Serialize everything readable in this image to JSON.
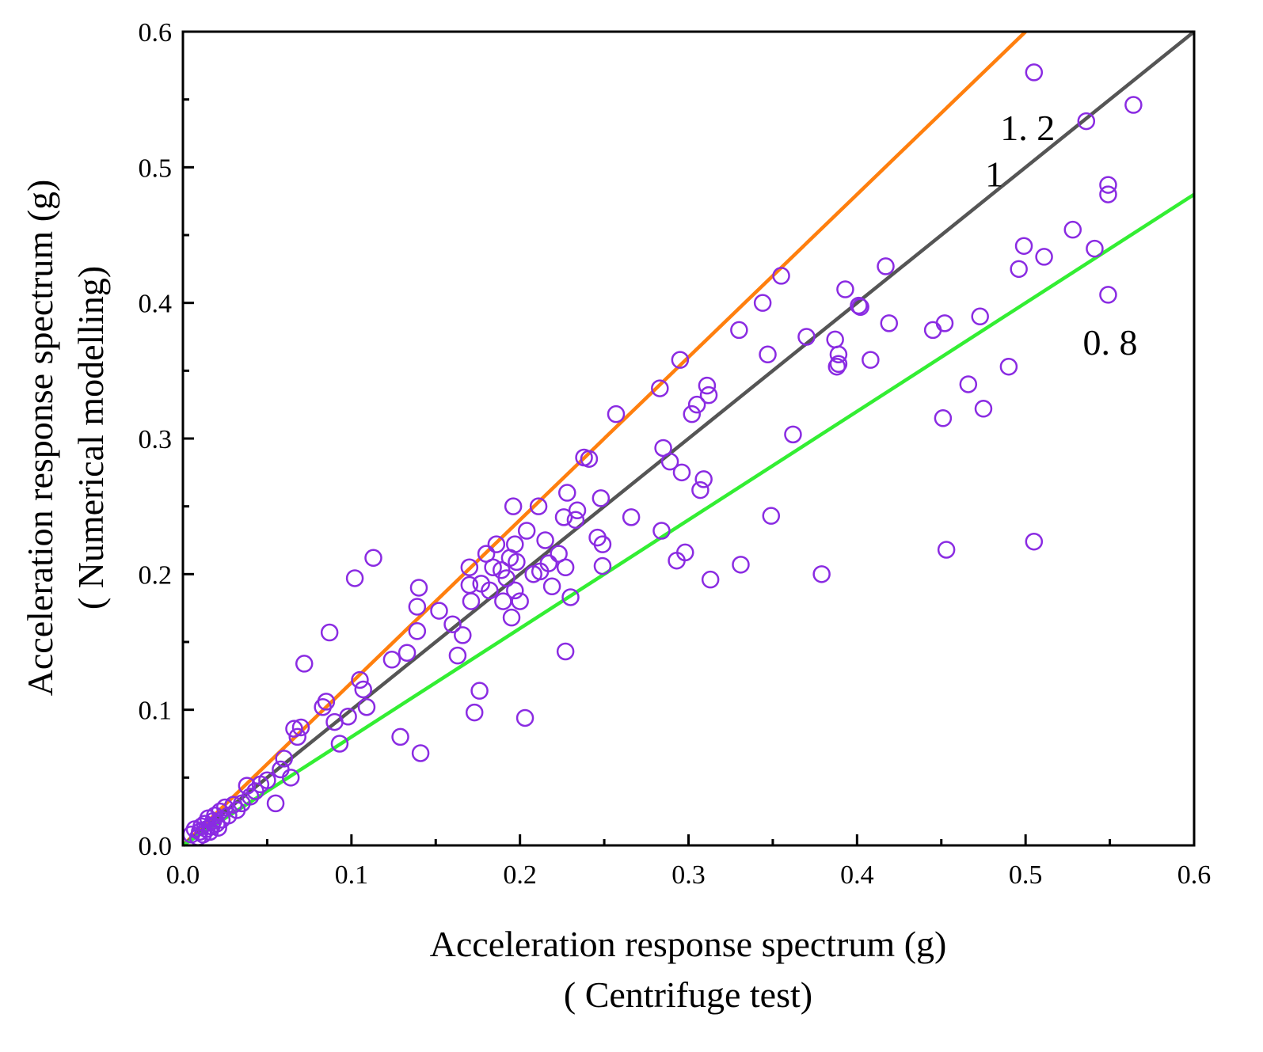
{
  "chart_data": {
    "type": "scatter",
    "x_title_line1": "Acceleration response spectrum (g)",
    "x_title_line2": "( Centrifuge test)",
    "y_title_line1": "Acceleration response spectrum (g)",
    "y_title_line2": "( Numerical modelling)",
    "xlim": [
      0,
      0.6
    ],
    "ylim": [
      0,
      0.6
    ],
    "x_ticks": [
      "0.0",
      "0.1",
      "0.2",
      "0.3",
      "0.4",
      "0.5",
      "0.6"
    ],
    "y_ticks": [
      "0.0",
      "0.1",
      "0.2",
      "0.3",
      "0.4",
      "0.5",
      "0.6"
    ],
    "reference_lines": [
      {
        "label": "1. 2",
        "slope": 1.2,
        "color": "#ff7f0e"
      },
      {
        "label": "1",
        "slope": 1.0,
        "color": "#555555"
      },
      {
        "label": "0. 8",
        "slope": 0.8,
        "color": "#33ee33"
      }
    ],
    "marker_color": "#8a2be2",
    "series": [
      {
        "name": "Acceleration response spectrum",
        "points": [
          [
            0.005,
            0.008
          ],
          [
            0.007,
            0.012
          ],
          [
            0.009,
            0.006
          ],
          [
            0.01,
            0.01
          ],
          [
            0.011,
            0.014
          ],
          [
            0.012,
            0.008
          ],
          [
            0.013,
            0.016
          ],
          [
            0.014,
            0.012
          ],
          [
            0.015,
            0.02
          ],
          [
            0.016,
            0.01
          ],
          [
            0.017,
            0.014
          ],
          [
            0.018,
            0.018
          ],
          [
            0.019,
            0.022
          ],
          [
            0.02,
            0.016
          ],
          [
            0.021,
            0.013
          ],
          [
            0.022,
            0.025
          ],
          [
            0.023,
            0.019
          ],
          [
            0.025,
            0.028
          ],
          [
            0.027,
            0.022
          ],
          [
            0.03,
            0.03
          ],
          [
            0.032,
            0.026
          ],
          [
            0.035,
            0.031
          ],
          [
            0.038,
            0.044
          ],
          [
            0.04,
            0.036
          ],
          [
            0.043,
            0.04
          ],
          [
            0.046,
            0.045
          ],
          [
            0.05,
            0.048
          ],
          [
            0.055,
            0.031
          ],
          [
            0.058,
            0.056
          ],
          [
            0.06,
            0.064
          ],
          [
            0.064,
            0.05
          ],
          [
            0.066,
            0.086
          ],
          [
            0.068,
            0.08
          ],
          [
            0.07,
            0.087
          ],
          [
            0.072,
            0.134
          ],
          [
            0.083,
            0.102
          ],
          [
            0.085,
            0.106
          ],
          [
            0.087,
            0.157
          ],
          [
            0.09,
            0.091
          ],
          [
            0.093,
            0.075
          ],
          [
            0.098,
            0.095
          ],
          [
            0.102,
            0.197
          ],
          [
            0.105,
            0.122
          ],
          [
            0.107,
            0.115
          ],
          [
            0.109,
            0.102
          ],
          [
            0.113,
            0.212
          ],
          [
            0.124,
            0.137
          ],
          [
            0.129,
            0.08
          ],
          [
            0.133,
            0.142
          ],
          [
            0.139,
            0.176
          ],
          [
            0.139,
            0.158
          ],
          [
            0.14,
            0.19
          ],
          [
            0.141,
            0.068
          ],
          [
            0.152,
            0.173
          ],
          [
            0.16,
            0.163
          ],
          [
            0.163,
            0.14
          ],
          [
            0.166,
            0.155
          ],
          [
            0.17,
            0.205
          ],
          [
            0.17,
            0.192
          ],
          [
            0.171,
            0.18
          ],
          [
            0.173,
            0.098
          ],
          [
            0.176,
            0.114
          ],
          [
            0.177,
            0.193
          ],
          [
            0.18,
            0.215
          ],
          [
            0.182,
            0.188
          ],
          [
            0.184,
            0.205
          ],
          [
            0.186,
            0.222
          ],
          [
            0.189,
            0.203
          ],
          [
            0.19,
            0.18
          ],
          [
            0.192,
            0.197
          ],
          [
            0.194,
            0.212
          ],
          [
            0.195,
            0.168
          ],
          [
            0.196,
            0.25
          ],
          [
            0.197,
            0.222
          ],
          [
            0.197,
            0.188
          ],
          [
            0.198,
            0.209
          ],
          [
            0.2,
            0.18
          ],
          [
            0.203,
            0.094
          ],
          [
            0.204,
            0.232
          ],
          [
            0.208,
            0.2
          ],
          [
            0.211,
            0.25
          ],
          [
            0.212,
            0.202
          ],
          [
            0.215,
            0.225
          ],
          [
            0.217,
            0.208
          ],
          [
            0.219,
            0.191
          ],
          [
            0.223,
            0.215
          ],
          [
            0.226,
            0.242
          ],
          [
            0.227,
            0.143
          ],
          [
            0.227,
            0.205
          ],
          [
            0.228,
            0.26
          ],
          [
            0.23,
            0.183
          ],
          [
            0.233,
            0.24
          ],
          [
            0.234,
            0.247
          ],
          [
            0.238,
            0.286
          ],
          [
            0.241,
            0.285
          ],
          [
            0.246,
            0.227
          ],
          [
            0.248,
            0.256
          ],
          [
            0.249,
            0.222
          ],
          [
            0.249,
            0.206
          ],
          [
            0.257,
            0.318
          ],
          [
            0.266,
            0.242
          ],
          [
            0.283,
            0.337
          ],
          [
            0.284,
            0.232
          ],
          [
            0.285,
            0.293
          ],
          [
            0.289,
            0.283
          ],
          [
            0.293,
            0.21
          ],
          [
            0.295,
            0.358
          ],
          [
            0.296,
            0.275
          ],
          [
            0.298,
            0.216
          ],
          [
            0.302,
            0.318
          ],
          [
            0.305,
            0.325
          ],
          [
            0.307,
            0.262
          ],
          [
            0.309,
            0.27
          ],
          [
            0.311,
            0.339
          ],
          [
            0.312,
            0.332
          ],
          [
            0.313,
            0.196
          ],
          [
            0.33,
            0.38
          ],
          [
            0.331,
            0.207
          ],
          [
            0.344,
            0.4
          ],
          [
            0.347,
            0.362
          ],
          [
            0.349,
            0.243
          ],
          [
            0.355,
            0.42
          ],
          [
            0.362,
            0.303
          ],
          [
            0.37,
            0.375
          ],
          [
            0.379,
            0.2
          ],
          [
            0.387,
            0.373
          ],
          [
            0.388,
            0.353
          ],
          [
            0.389,
            0.362
          ],
          [
            0.389,
            0.355
          ],
          [
            0.393,
            0.41
          ],
          [
            0.401,
            0.398
          ],
          [
            0.402,
            0.397
          ],
          [
            0.408,
            0.358
          ],
          [
            0.417,
            0.427
          ],
          [
            0.419,
            0.385
          ],
          [
            0.445,
            0.38
          ],
          [
            0.451,
            0.315
          ],
          [
            0.452,
            0.385
          ],
          [
            0.453,
            0.218
          ],
          [
            0.466,
            0.34
          ],
          [
            0.473,
            0.39
          ],
          [
            0.475,
            0.322
          ],
          [
            0.49,
            0.353
          ],
          [
            0.496,
            0.425
          ],
          [
            0.499,
            0.442
          ],
          [
            0.505,
            0.57
          ],
          [
            0.505,
            0.224
          ],
          [
            0.511,
            0.434
          ],
          [
            0.528,
            0.454
          ],
          [
            0.536,
            0.534
          ],
          [
            0.541,
            0.44
          ],
          [
            0.549,
            0.406
          ],
          [
            0.549,
            0.487
          ],
          [
            0.549,
            0.48
          ],
          [
            0.564,
            0.546
          ]
        ]
      }
    ]
  }
}
